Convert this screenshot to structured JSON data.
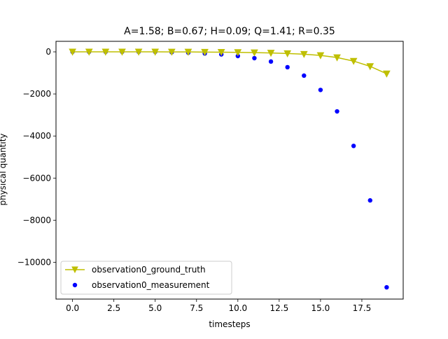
{
  "chart_data": {
    "type": "line",
    "title": "A=1.58; B=0.67; H=0.09; Q=1.41; R=0.35",
    "xlabel": "timesteps",
    "ylabel": "physical quantity",
    "xlim": [
      -1,
      20
    ],
    "ylim": [
      -11750,
      500
    ],
    "xticks": [
      0,
      2.5,
      5,
      7.5,
      10,
      12.5,
      15,
      17.5
    ],
    "xtick_labels": [
      "0.0",
      "2.5",
      "5.0",
      "7.5",
      "10.0",
      "12.5",
      "15.0",
      "17.5"
    ],
    "yticks": [
      0,
      -2000,
      -4000,
      -6000,
      -8000,
      -10000
    ],
    "ytick_labels": [
      "0",
      "−2000",
      "−4000",
      "−6000",
      "−8000",
      "−10000"
    ],
    "grid": false,
    "legend_position": "lower-left",
    "series": [
      {
        "name": "observation0_ground_truth",
        "style": "line-with-triangle-down-markers",
        "color": "#bfbf00",
        "x": [
          0,
          1,
          2,
          3,
          4,
          5,
          6,
          7,
          8,
          9,
          10,
          11,
          12,
          13,
          14,
          15,
          16,
          17,
          18,
          19
        ],
        "values": [
          0,
          0,
          0,
          0,
          0,
          0,
          -2,
          -5,
          -10,
          -15,
          -25,
          -35,
          -55,
          -80,
          -110,
          -170,
          -270,
          -440,
          -690,
          -1040
        ]
      },
      {
        "name": "observation0_measurement",
        "style": "scatter-circle",
        "color": "#0000ff",
        "x": [
          0,
          1,
          2,
          3,
          4,
          5,
          6,
          7,
          8,
          9,
          10,
          11,
          12,
          13,
          14,
          15,
          16,
          17,
          18,
          19
        ],
        "values": [
          0,
          0,
          0,
          0,
          0,
          0,
          -20,
          -40,
          -80,
          -120,
          -200,
          -300,
          -460,
          -730,
          -1130,
          -1810,
          -2830,
          -4470,
          -7060,
          -11190
        ]
      }
    ]
  }
}
